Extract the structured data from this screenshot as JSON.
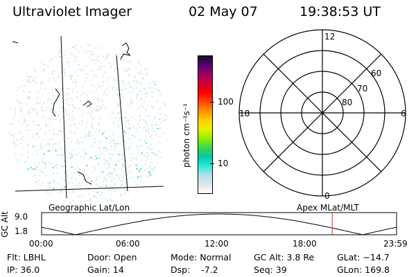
{
  "header": {
    "instrument": "Ultraviolet Imager",
    "date": "02 May 07",
    "time": "19:38:53 UT"
  },
  "colorbar": {
    "unit_label": "photon cm⁻²s⁻¹",
    "ticks": [
      "100",
      "10"
    ],
    "colors": [
      "#ffffff",
      "#dfe4e8",
      "#b0e0ea",
      "#2ce8d8",
      "#00c8a8",
      "#3ad850",
      "#8ef000",
      "#e8f000",
      "#ffd000",
      "#ff9000",
      "#ff4800",
      "#ff0000",
      "#d00030",
      "#a00060",
      "#5a0070",
      "#101030"
    ]
  },
  "polar_plot": {
    "mlt_labels": {
      "top": "12",
      "left": "18",
      "right": "6",
      "bottom": "0"
    },
    "lat_labels": [
      "60",
      "70",
      "80"
    ]
  },
  "orbit_plot": {
    "left_title": "Geographic Lat/Lon",
    "right_title": "Apex MLat/MLT",
    "y_axis_label": "GC Alt",
    "y_ticks": [
      "9.0",
      "1.8"
    ],
    "x_ticks": [
      "00:00",
      "06:00",
      "12:00",
      "18:00",
      "23:59"
    ],
    "current_time_fraction": 0.8187,
    "marker_color": "#c03030"
  },
  "status": {
    "filter": "Flt: LBHL",
    "ip": "IP: 36.0",
    "door": "Door: Open",
    "gain": "Gain: 14",
    "mode": "Mode: Normal",
    "dsp": "Dsp:    -7.2",
    "gc_alt": "GC Alt: 3.8 Re",
    "seq": "Seq: 39",
    "glat": "GLat: −14.7",
    "glon": "GLon: 169.8"
  }
}
